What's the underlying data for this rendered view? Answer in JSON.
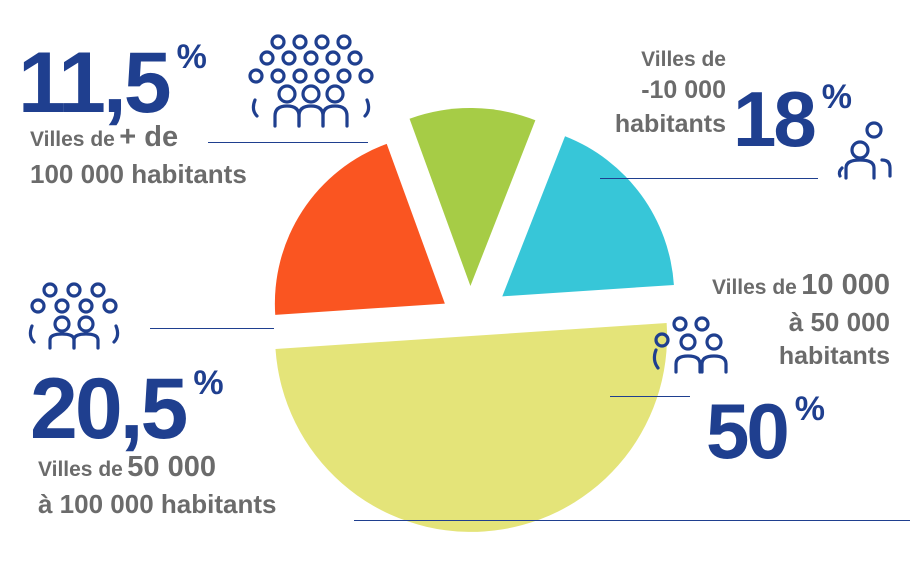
{
  "chart_data": {
    "type": "pie",
    "slices": [
      {
        "label": "Villes de + de 100 000 habitants",
        "value": 11.5,
        "color": "#a6cc46"
      },
      {
        "label": "Villes de -10 000 habitants",
        "value": 18,
        "color": "#37c6d8"
      },
      {
        "label": "Villes de 10 000 à 50 000 habitants",
        "value": 50,
        "color": "#e4e479"
      },
      {
        "label": "Villes de 50 000 à 100 000 habitants",
        "value": 20.5,
        "color": "#fa5521"
      }
    ],
    "percent_sign": "%",
    "line_color": "#1f3f8f",
    "icon": "people-group-icon",
    "callouts": {
      "large": {
        "value": "11,5",
        "l1_small": "Villes de",
        "l1_big": "+ de",
        "l2": "100 000 habitants"
      },
      "small": {
        "value": "18",
        "l1": "Villes de",
        "l2": "-10 000",
        "l3": "habitants"
      },
      "medium": {
        "value": "50",
        "l1_small": "Villes de",
        "l1_big": "10 000",
        "l2": "à 50 000",
        "l3": "habitants"
      },
      "upper": {
        "value": "20,5",
        "l1_small": "Villes de",
        "l1_big": "50 000",
        "l2": "à 100 000 habitants"
      }
    }
  }
}
